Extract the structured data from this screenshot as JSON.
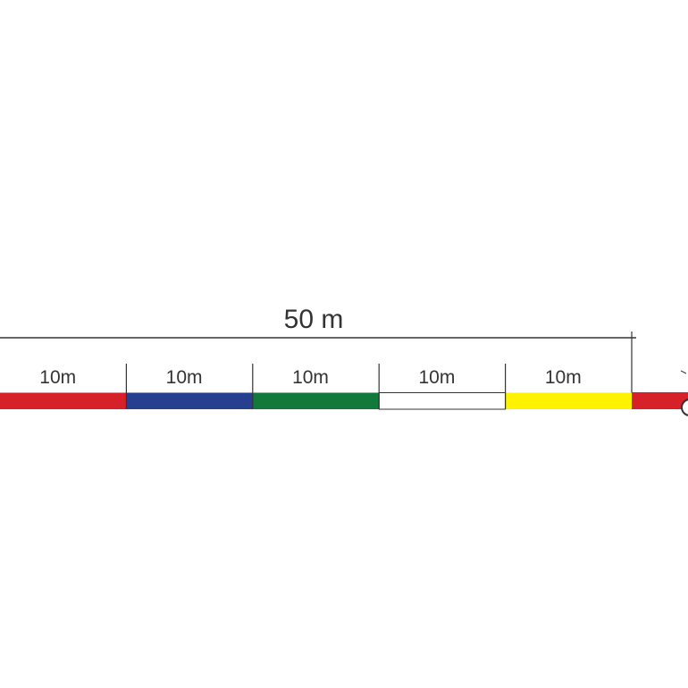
{
  "total_label": "50 m",
  "segments": [
    {
      "label": "10m",
      "color": "#d62129"
    },
    {
      "label": "10m",
      "color": "#263f8f"
    },
    {
      "label": "10m",
      "color": "#117a3a"
    },
    {
      "label": "10m",
      "color": "#ffffff"
    },
    {
      "label": "10m",
      "color": "#fff200"
    }
  ],
  "tail_color": "#d62129",
  "line_color": "#333333"
}
